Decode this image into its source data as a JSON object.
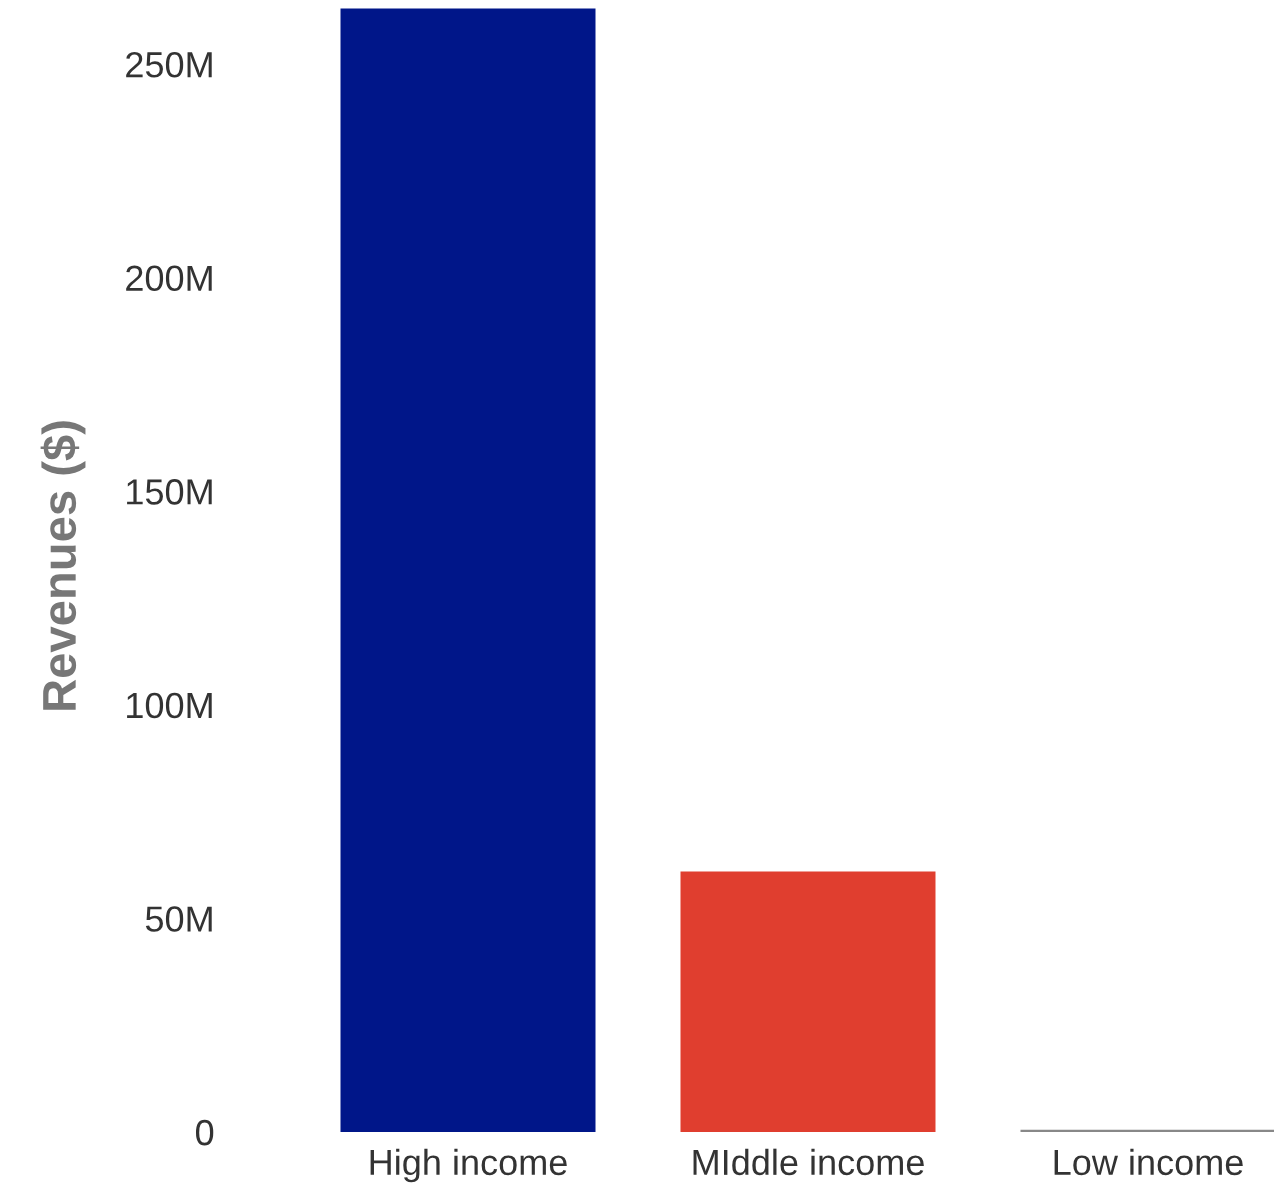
{
  "chart_data": {
    "type": "bar",
    "ylabel": "Revenues ($)",
    "categories": [
      "High income",
      "MIddle income",
      "Low income"
    ],
    "values": [
      263000000,
      61000000,
      500000
    ],
    "colors": [
      "#001689",
      "#e03e2f",
      "#888888"
    ],
    "ylim": [
      0,
      265000000
    ],
    "yticks": [
      {
        "value": 0,
        "label": "0"
      },
      {
        "value": 50000000,
        "label": "50M"
      },
      {
        "value": 100000000,
        "label": "100M"
      },
      {
        "value": 150000000,
        "label": "150M"
      },
      {
        "value": 200000000,
        "label": "200M"
      },
      {
        "value": 250000000,
        "label": "250M"
      }
    ],
    "grid": false,
    "legend": false
  }
}
